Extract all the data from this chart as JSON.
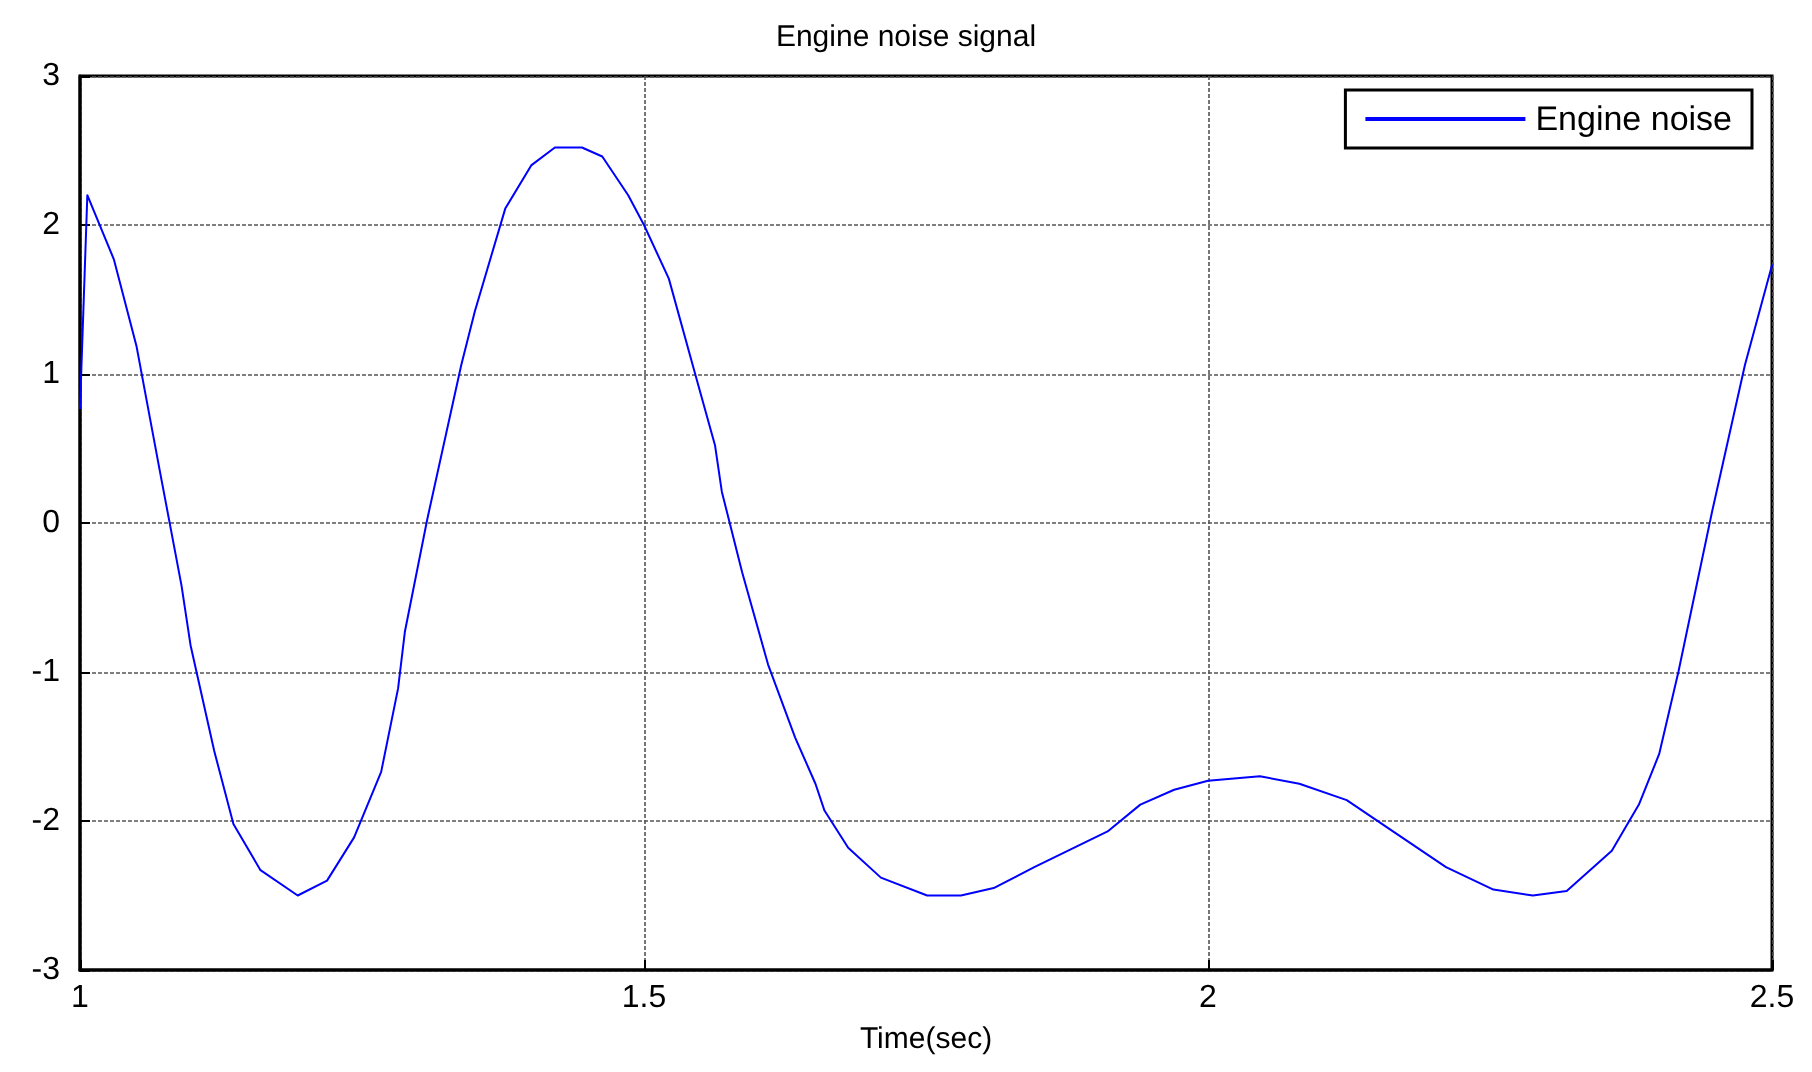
{
  "chart_data": {
    "type": "line",
    "title": "Engine noise signal",
    "xlabel": "Time(sec)",
    "xlim": [
      1,
      2.5
    ],
    "xticks": [
      1,
      1.5,
      2,
      2.5
    ],
    "ylim": [
      -3,
      3
    ],
    "yticks": [
      -3,
      -2,
      -1,
      0,
      1,
      2,
      3
    ],
    "grid": true,
    "legend": "top right",
    "marker": "none",
    "line_style": "solid",
    "series": [
      {
        "name": "Engine noise",
        "color": "#0000ff",
        "x": [
          1.0,
          1.0065,
          1.03,
          1.05,
          1.071,
          1.09,
          1.098,
          1.119,
          1.136,
          1.16,
          1.193,
          1.219,
          1.243,
          1.267,
          1.282,
          1.288,
          1.308,
          1.338,
          1.35,
          1.377,
          1.4,
          1.421,
          1.445,
          1.463,
          1.486,
          1.5,
          1.522,
          1.545,
          1.563,
          1.569,
          1.587,
          1.61,
          1.634,
          1.652,
          1.66,
          1.681,
          1.71,
          1.751,
          1.781,
          1.81,
          1.846,
          1.881,
          1.911,
          1.94,
          1.97,
          2.0,
          2.046,
          2.081,
          2.123,
          2.164,
          2.211,
          2.253,
          2.288,
          2.318,
          2.358,
          2.382,
          2.4,
          2.417,
          2.447,
          2.476,
          2.5
        ],
        "values": [
          0.77,
          2.2,
          1.77,
          1.19,
          0.34,
          -0.42,
          -0.82,
          -1.53,
          -2.02,
          -2.33,
          -2.5,
          -2.4,
          -2.11,
          -1.67,
          -1.11,
          -0.73,
          0.03,
          1.06,
          1.42,
          2.11,
          2.4,
          2.52,
          2.52,
          2.46,
          2.2,
          2.0,
          1.64,
          1.01,
          0.52,
          0.21,
          -0.33,
          -0.95,
          -1.44,
          -1.75,
          -1.93,
          -2.18,
          -2.38,
          -2.5,
          -2.5,
          -2.45,
          -2.31,
          -2.18,
          -2.07,
          -1.89,
          -1.79,
          -1.73,
          -1.7,
          -1.75,
          -1.86,
          -2.07,
          -2.31,
          -2.46,
          -2.5,
          -2.47,
          -2.2,
          -1.89,
          -1.55,
          -1.0,
          0.08,
          1.06,
          1.73
        ]
      }
    ]
  }
}
